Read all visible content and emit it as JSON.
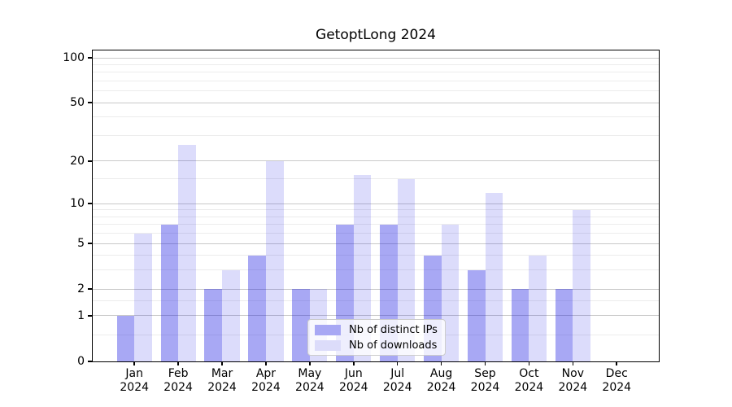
{
  "chart_data": {
    "type": "bar",
    "title": "GetoptLong 2024",
    "categories": [
      "Jan",
      "Feb",
      "Mar",
      "Apr",
      "May",
      "Jun",
      "Jul",
      "Aug",
      "Sep",
      "Oct",
      "Nov",
      "Dec"
    ],
    "x_year": "2024",
    "series": [
      {
        "name": "Nb of distinct IPs",
        "color": "rgba(20,20,225,0.37)",
        "color_hex_on_white": "#a8a8f4",
        "values": [
          1,
          7,
          2,
          4,
          2,
          7,
          7,
          4,
          3,
          2,
          2,
          0
        ]
      },
      {
        "name": "Nb of downloads",
        "color": "rgba(20,20,225,0.15)",
        "color_hex_on_white": "#dcdcfa",
        "values": [
          6,
          26,
          3,
          20,
          2,
          16,
          15,
          7,
          12,
          4,
          9,
          0
        ]
      }
    ],
    "xlabel": "",
    "ylabel": "",
    "y_axis": {
      "scale": "log1p",
      "major_ticks": [
        0,
        1,
        2,
        5,
        10,
        20,
        50,
        100
      ],
      "minor_ticks": [
        0.5,
        1.5,
        3,
        4,
        6,
        7,
        8,
        9,
        15,
        30,
        40,
        60,
        70,
        80,
        90
      ],
      "ylim": [
        0,
        113
      ]
    },
    "grid": "on",
    "legend_position": "lower center inside"
  },
  "colors": {
    "background": "#ffffff",
    "axis": "#000000",
    "grid_major": "#c9c9c9",
    "grid_minor": "#ececec",
    "legend_border": "#cccccc",
    "legend_background": "rgba(255,255,255,0.8)",
    "text": "#000000"
  }
}
